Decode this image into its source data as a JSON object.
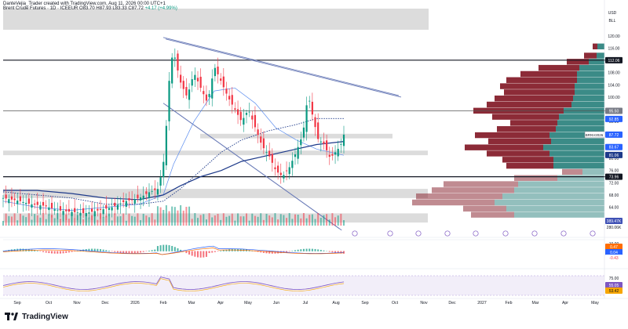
{
  "header": {
    "creator": "DanteVejia_Trader created with TradingView.com, Aug 11, 2026 00:00 UTC+1",
    "symbol": "Brent Crude Futures · 1D · ICEEUR",
    "ohlc": "O83.70 H87.93 L83.33 C87.72",
    "change": "+4.17 (+4.99%)"
  },
  "axis": {
    "currency": "USD",
    "unit": "BLL",
    "price_ticks": [
      "120.00",
      "116.00",
      "112.00",
      "108.00",
      "104.00",
      "100.00",
      "96.00",
      "92.00",
      "88.00",
      "84.00",
      "80.00",
      "76.00",
      "72.00",
      "68.00",
      "64.00",
      "60.00"
    ],
    "macd_ticks": [
      "10.00",
      "0.00",
      "-10.00"
    ],
    "rsi_ticks": [
      "75.00",
      "25.00"
    ],
    "date_ticks": [
      "Sep",
      "Oct",
      "Nov",
      "Dec",
      "2026",
      "Feb",
      "Mar",
      "Apr",
      "May",
      "Jun",
      "Jul",
      "Aug",
      "Sep",
      "Oct",
      "Nov",
      "Dec",
      "2027",
      "Feb",
      "Mar",
      "Apr",
      "May"
    ]
  },
  "badges": {
    "level_112": "112.06",
    "level_95": "95.50",
    "level_92": "92.85",
    "symbol_tag": "BRNV2026",
    "last": "87.72",
    "ma_a": "83.67",
    "ma_b": "81.06",
    "level_74": "73.96",
    "vol_a": "389.47K",
    "vol_b": "280.06K",
    "macd_a": "0.47",
    "macd_b": "0.04",
    "macd_c": "-0.43",
    "rsi_a": "55.05",
    "rsi_b": "53.42"
  },
  "colors": {
    "up": "#089981",
    "down": "#f23645",
    "vp_up": "#3b8b87",
    "vp_down": "#8c2b37",
    "ma_dark": "#1e3a8a",
    "ma_light": "#5b8def",
    "channel": "#6b7cb8",
    "rsi": "#7e57c2",
    "price_badge": "#2962ff"
  },
  "footer": {
    "brand": "TradingView"
  },
  "chart_data": {
    "type": "candlestick",
    "symbol": "Brent Crude Futures",
    "timeframe": "1D",
    "last_close": 87.72,
    "ylim": [
      58,
      122
    ],
    "horizontal_levels": [
      112.06,
      95.5,
      73.96
    ],
    "shaded_zones": [
      [
        86.5,
        88
      ],
      [
        81,
        82.5
      ],
      [
        67,
        70
      ],
      [
        59,
        62
      ]
    ],
    "price_path": [
      [
        0,
        67
      ],
      [
        0.05,
        66
      ],
      [
        0.08,
        65
      ],
      [
        0.12,
        64.5
      ],
      [
        0.16,
        63
      ],
      [
        0.2,
        62.5
      ],
      [
        0.24,
        62
      ],
      [
        0.28,
        63
      ],
      [
        0.32,
        64
      ],
      [
        0.36,
        66
      ],
      [
        0.4,
        67
      ],
      [
        0.43,
        69
      ],
      [
        0.455,
        70
      ],
      [
        0.47,
        78
      ],
      [
        0.48,
        92
      ],
      [
        0.49,
        110
      ],
      [
        0.5,
        115
      ],
      [
        0.52,
        105
      ],
      [
        0.54,
        100
      ],
      [
        0.56,
        108
      ],
      [
        0.58,
        103
      ],
      [
        0.6,
        98
      ],
      [
        0.62,
        110
      ],
      [
        0.64,
        105
      ],
      [
        0.66,
        100
      ],
      [
        0.68,
        96
      ],
      [
        0.7,
        92
      ],
      [
        0.72,
        96
      ],
      [
        0.74,
        90
      ],
      [
        0.76,
        84
      ],
      [
        0.78,
        81
      ],
      [
        0.8,
        76
      ],
      [
        0.82,
        74
      ],
      [
        0.84,
        77
      ],
      [
        0.86,
        82
      ],
      [
        0.88,
        88
      ],
      [
        0.895,
        101
      ],
      [
        0.91,
        93
      ],
      [
        0.925,
        86
      ],
      [
        0.94,
        85
      ],
      [
        0.96,
        80
      ],
      [
        0.975,
        82
      ],
      [
        0.99,
        84
      ],
      [
        1,
        87.72
      ]
    ],
    "ma_long_path": [
      [
        0,
        69.5
      ],
      [
        0.1,
        69.5
      ],
      [
        0.2,
        68.5
      ],
      [
        0.3,
        67
      ],
      [
        0.4,
        66.5
      ],
      [
        0.47,
        68
      ],
      [
        0.52,
        71
      ],
      [
        0.58,
        74
      ],
      [
        0.64,
        76
      ],
      [
        0.7,
        79
      ],
      [
        0.78,
        81
      ],
      [
        0.86,
        83
      ],
      [
        0.92,
        84.5
      ],
      [
        1,
        85.5
      ]
    ],
    "ma_mid_path": [
      [
        0,
        69
      ],
      [
        0.1,
        68
      ],
      [
        0.2,
        67
      ],
      [
        0.3,
        65
      ],
      [
        0.4,
        65
      ],
      [
        0.47,
        66
      ],
      [
        0.52,
        70
      ],
      [
        0.58,
        76
      ],
      [
        0.64,
        82
      ],
      [
        0.7,
        86
      ],
      [
        0.78,
        89
      ],
      [
        0.86,
        91
      ],
      [
        0.92,
        93
      ],
      [
        1,
        93
      ]
    ],
    "ma_fast_path": [
      [
        0,
        66
      ],
      [
        0.1,
        64
      ],
      [
        0.2,
        63
      ],
      [
        0.3,
        64
      ],
      [
        0.4,
        65
      ],
      [
        0.47,
        68
      ],
      [
        0.5,
        78
      ],
      [
        0.56,
        92
      ],
      [
        0.62,
        102
      ],
      [
        0.68,
        103
      ],
      [
        0.74,
        98
      ],
      [
        0.8,
        90
      ],
      [
        0.86,
        86
      ],
      [
        0.92,
        83
      ],
      [
        1,
        81
      ]
    ],
    "channel_upper_points": [
      [
        0.47,
        119.5
      ],
      [
        1,
        100.5
      ]
    ],
    "channel_lower_points": [
      [
        0.47,
        98
      ],
      [
        0.86,
        57
      ]
    ],
    "volume_profile_rows": [
      {
        "price": 116.5,
        "up": 9,
        "down": 6
      },
      {
        "price": 113.5,
        "up": 10,
        "down": 16
      },
      {
        "price": 111.5,
        "up": 20,
        "down": 28
      },
      {
        "price": 109.5,
        "up": 32,
        "down": 52
      },
      {
        "price": 107.5,
        "up": 35,
        "down": 72
      },
      {
        "price": 105.5,
        "up": 35,
        "down": 90
      },
      {
        "price": 103.5,
        "up": 38,
        "down": 95
      },
      {
        "price": 101.5,
        "up": 38,
        "down": 90
      },
      {
        "price": 99.5,
        "up": 40,
        "down": 100
      },
      {
        "price": 97.5,
        "up": 42,
        "down": 108
      },
      {
        "price": 95.5,
        "up": 52,
        "down": 115
      },
      {
        "price": 93.5,
        "up": 58,
        "down": 85
      },
      {
        "price": 91.5,
        "up": 60,
        "down": 60
      },
      {
        "price": 89.5,
        "up": 62,
        "down": 75
      },
      {
        "price": 87.5,
        "up": 70,
        "down": 95
      },
      {
        "price": 85.5,
        "up": 68,
        "down": 80
      },
      {
        "price": 83.5,
        "up": 78,
        "down": 100
      },
      {
        "price": 81.5,
        "up": 70,
        "down": 80
      },
      {
        "price": 79.5,
        "up": 65,
        "down": 65
      },
      {
        "price": 77.5,
        "up": 65,
        "down": 60
      },
      {
        "price": 75.5,
        "up": 28,
        "down": 26
      },
      {
        "price": 73.5,
        "up": 60,
        "down": 55
      },
      {
        "price": 71.5,
        "up": 110,
        "down": 95
      },
      {
        "price": 69.5,
        "up": 115,
        "down": 105
      },
      {
        "price": 67.5,
        "up": 130,
        "down": 110
      },
      {
        "price": 65.5,
        "up": 140,
        "down": 105
      },
      {
        "price": 63.5,
        "up": 125,
        "down": 55
      },
      {
        "price": 61.5,
        "up": 115,
        "down": 55
      }
    ],
    "macd": {
      "ylim": [
        -14,
        14
      ],
      "values": [
        0.47,
        0.04,
        -0.43
      ]
    },
    "rsi": {
      "ylim": [
        0,
        100
      ],
      "bands": [
        25,
        75
      ],
      "values": [
        55.05,
        53.42
      ]
    }
  }
}
